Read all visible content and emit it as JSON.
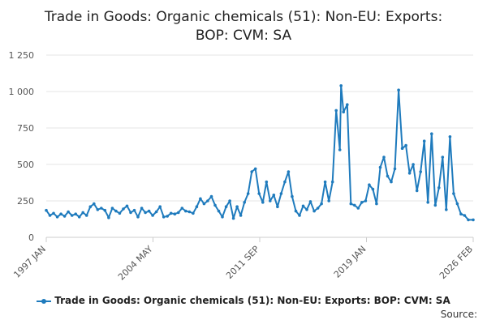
{
  "chart_data": {
    "type": "line",
    "title_lines": [
      "Trade in Goods: Organic chemicals (51): Non-EU: Exports:",
      "BOP: CVM: SA"
    ],
    "xlabel": "",
    "ylabel": "",
    "x_tick_labels": [
      "1997 JAN",
      "2004 MAY",
      "2011 SEP",
      "2019 JAN",
      "2026 FEB"
    ],
    "y_ticks": [
      0,
      250,
      500,
      750,
      1000,
      1250
    ],
    "y_tick_labels": [
      "0",
      "250",
      "500",
      "750",
      "1 000",
      "1 250"
    ],
    "ylim": [
      0,
      1250
    ],
    "x_range": [
      "1997-01",
      "2026-02"
    ],
    "grid": "horizontal",
    "legend_position": "bottom",
    "series": [
      {
        "name": "Trade in Goods: Organic chemicals (51): Non-EU: Exports: BOP: CVM: SA",
        "color": "#1f7bbd",
        "points": [
          [
            "1997-01",
            185
          ],
          [
            "1997-04",
            150
          ],
          [
            "1997-07",
            165
          ],
          [
            "1997-10",
            140
          ],
          [
            "1998-01",
            160
          ],
          [
            "1998-04",
            145
          ],
          [
            "1998-07",
            175
          ],
          [
            "1998-10",
            150
          ],
          [
            "1999-01",
            160
          ],
          [
            "1999-04",
            140
          ],
          [
            "1999-07",
            170
          ],
          [
            "1999-10",
            150
          ],
          [
            "2000-01",
            210
          ],
          [
            "2000-04",
            230
          ],
          [
            "2000-07",
            190
          ],
          [
            "2000-10",
            200
          ],
          [
            "2001-01",
            185
          ],
          [
            "2001-04",
            135
          ],
          [
            "2001-07",
            200
          ],
          [
            "2001-10",
            180
          ],
          [
            "2002-01",
            165
          ],
          [
            "2002-04",
            195
          ],
          [
            "2002-07",
            215
          ],
          [
            "2002-10",
            170
          ],
          [
            "2003-01",
            185
          ],
          [
            "2003-04",
            140
          ],
          [
            "2003-07",
            200
          ],
          [
            "2003-10",
            170
          ],
          [
            "2004-01",
            180
          ],
          [
            "2004-04",
            150
          ],
          [
            "2004-07",
            175
          ],
          [
            "2004-10",
            210
          ],
          [
            "2005-01",
            140
          ],
          [
            "2005-04",
            145
          ],
          [
            "2005-07",
            165
          ],
          [
            "2005-10",
            160
          ],
          [
            "2006-01",
            170
          ],
          [
            "2006-04",
            200
          ],
          [
            "2006-07",
            180
          ],
          [
            "2006-10",
            175
          ],
          [
            "2007-01",
            165
          ],
          [
            "2007-04",
            210
          ],
          [
            "2007-07",
            265
          ],
          [
            "2007-10",
            230
          ],
          [
            "2008-01",
            250
          ],
          [
            "2008-04",
            280
          ],
          [
            "2008-07",
            220
          ],
          [
            "2008-10",
            180
          ],
          [
            "2009-01",
            140
          ],
          [
            "2009-04",
            210
          ],
          [
            "2009-07",
            250
          ],
          [
            "2009-10",
            130
          ],
          [
            "2010-01",
            210
          ],
          [
            "2010-04",
            150
          ],
          [
            "2010-07",
            240
          ],
          [
            "2010-10",
            300
          ],
          [
            "2011-01",
            450
          ],
          [
            "2011-04",
            470
          ],
          [
            "2011-07",
            300
          ],
          [
            "2011-10",
            240
          ],
          [
            "2012-01",
            380
          ],
          [
            "2012-04",
            250
          ],
          [
            "2012-07",
            290
          ],
          [
            "2012-10",
            210
          ],
          [
            "2013-01",
            300
          ],
          [
            "2013-04",
            380
          ],
          [
            "2013-07",
            450
          ],
          [
            "2013-10",
            280
          ],
          [
            "2014-01",
            180
          ],
          [
            "2014-04",
            150
          ],
          [
            "2014-07",
            215
          ],
          [
            "2014-10",
            190
          ],
          [
            "2015-01",
            245
          ],
          [
            "2015-04",
            180
          ],
          [
            "2015-07",
            200
          ],
          [
            "2015-10",
            230
          ],
          [
            "2016-01",
            380
          ],
          [
            "2016-04",
            250
          ],
          [
            "2016-07",
            380
          ],
          [
            "2016-10",
            870
          ],
          [
            "2017-01",
            600
          ],
          [
            "2017-02",
            1040
          ],
          [
            "2017-04",
            860
          ],
          [
            "2017-07",
            910
          ],
          [
            "2017-10",
            230
          ],
          [
            "2018-01",
            220
          ],
          [
            "2018-04",
            200
          ],
          [
            "2018-07",
            240
          ],
          [
            "2018-10",
            250
          ],
          [
            "2019-01",
            360
          ],
          [
            "2019-04",
            330
          ],
          [
            "2019-07",
            230
          ],
          [
            "2019-10",
            480
          ],
          [
            "2020-01",
            550
          ],
          [
            "2020-04",
            420
          ],
          [
            "2020-07",
            380
          ],
          [
            "2020-10",
            470
          ],
          [
            "2021-01",
            1010
          ],
          [
            "2021-04",
            610
          ],
          [
            "2021-07",
            630
          ],
          [
            "2021-10",
            440
          ],
          [
            "2022-01",
            500
          ],
          [
            "2022-04",
            320
          ],
          [
            "2022-07",
            450
          ],
          [
            "2022-10",
            660
          ],
          [
            "2023-01",
            240
          ],
          [
            "2023-04",
            710
          ],
          [
            "2023-07",
            220
          ],
          [
            "2023-10",
            340
          ],
          [
            "2024-01",
            550
          ],
          [
            "2024-04",
            190
          ],
          [
            "2024-07",
            690
          ],
          [
            "2024-10",
            300
          ],
          [
            "2025-01",
            230
          ],
          [
            "2025-04",
            160
          ],
          [
            "2025-07",
            150
          ],
          [
            "2025-10",
            120
          ],
          [
            "2026-02",
            120
          ]
        ]
      }
    ]
  },
  "source_label": "Source:"
}
